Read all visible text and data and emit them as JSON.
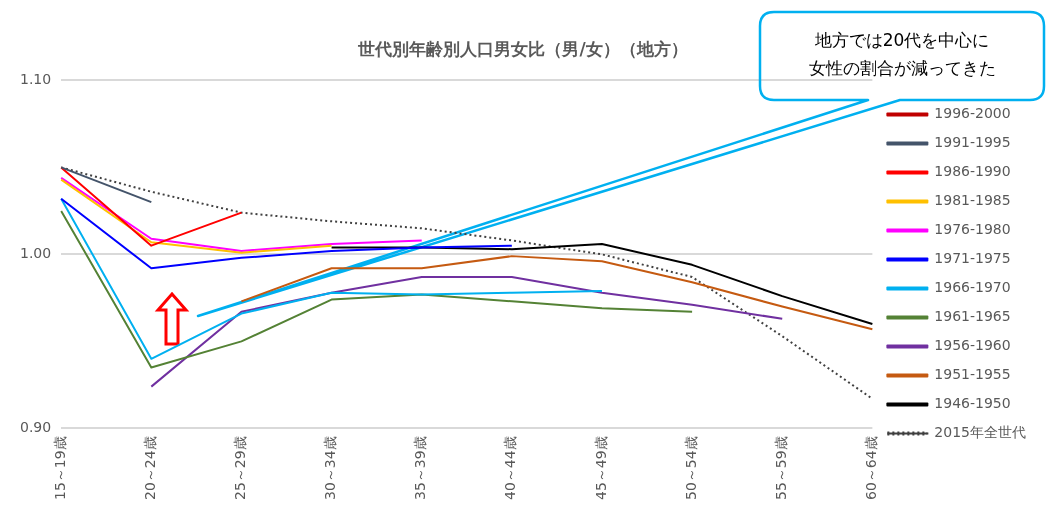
{
  "chart_data": {
    "type": "line",
    "title": "世代別年齢別人口男女比（男/女）（地方）",
    "categories": [
      "15～19歳",
      "20～24歳",
      "25～29歳",
      "30～34歳",
      "35～39歳",
      "40～44歳",
      "45～49歳",
      "50～54歳",
      "55～59歳",
      "60～64歳"
    ],
    "ylim": [
      0.9,
      1.1
    ],
    "yticks": [
      {
        "value": 0.9,
        "label": "0.90"
      },
      {
        "value": 1.0,
        "label": "1.00"
      },
      {
        "value": 1.1,
        "label": "1.10"
      }
    ],
    "grid": "y",
    "legend": "right",
    "marker": "none",
    "series": [
      {
        "name": "1996-2000",
        "color": "#c00000",
        "values": [
          null,
          null,
          null,
          null,
          null,
          null,
          null,
          null,
          null,
          null
        ]
      },
      {
        "name": "1991-1995",
        "color": "#44546a",
        "values": [
          1.05,
          1.03,
          null,
          null,
          null,
          null,
          null,
          null,
          null,
          null
        ]
      },
      {
        "name": "1986-1990",
        "color": "#ff0000",
        "values": [
          1.05,
          1.005,
          1.024,
          null,
          null,
          null,
          null,
          null,
          null,
          null
        ]
      },
      {
        "name": "1981-1985",
        "color": "#ffc000",
        "values": [
          1.043,
          1.007,
          1.001,
          1.005,
          null,
          null,
          null,
          null,
          null,
          null
        ]
      },
      {
        "name": "1976-1980",
        "color": "#ff00ff",
        "values": [
          1.044,
          1.009,
          1.002,
          1.006,
          1.008,
          null,
          null,
          null,
          null,
          null
        ]
      },
      {
        "name": "1971-1975",
        "color": "#0000ff",
        "values": [
          1.032,
          0.992,
          0.998,
          1.002,
          1.004,
          1.005,
          null,
          null,
          null,
          null
        ]
      },
      {
        "name": "1966-1970",
        "color": "#00b0f0",
        "values": [
          1.032,
          0.94,
          0.966,
          0.978,
          0.977,
          0.978,
          0.979,
          null,
          null,
          null
        ]
      },
      {
        "name": "1961-1965",
        "color": "#548235",
        "values": [
          1.025,
          0.935,
          0.95,
          0.974,
          0.977,
          0.973,
          0.969,
          0.967,
          null,
          null
        ]
      },
      {
        "name": "1956-1960",
        "color": "#7030a0",
        "values": [
          null,
          0.924,
          0.967,
          0.978,
          0.987,
          0.987,
          0.978,
          0.971,
          0.963,
          null
        ]
      },
      {
        "name": "1951-1955",
        "color": "#c55a11",
        "values": [
          null,
          null,
          0.973,
          0.992,
          0.992,
          0.999,
          0.996,
          0.984,
          0.97,
          0.957
        ]
      },
      {
        "name": "1946-1950",
        "color": "#000000",
        "values": [
          null,
          null,
          null,
          1.004,
          1.004,
          1.003,
          1.006,
          0.994,
          0.976,
          0.96
        ]
      },
      {
        "name": "2015年全世代",
        "color": "#404040",
        "line_style": "dotted",
        "values": [
          1.05,
          1.036,
          1.024,
          1.019,
          1.015,
          1.008,
          1.0,
          0.987,
          0.953,
          0.917
        ]
      }
    ],
    "annotations": [
      "地方では20代を中心に女性の割合が減ってきた"
    ]
  }
}
